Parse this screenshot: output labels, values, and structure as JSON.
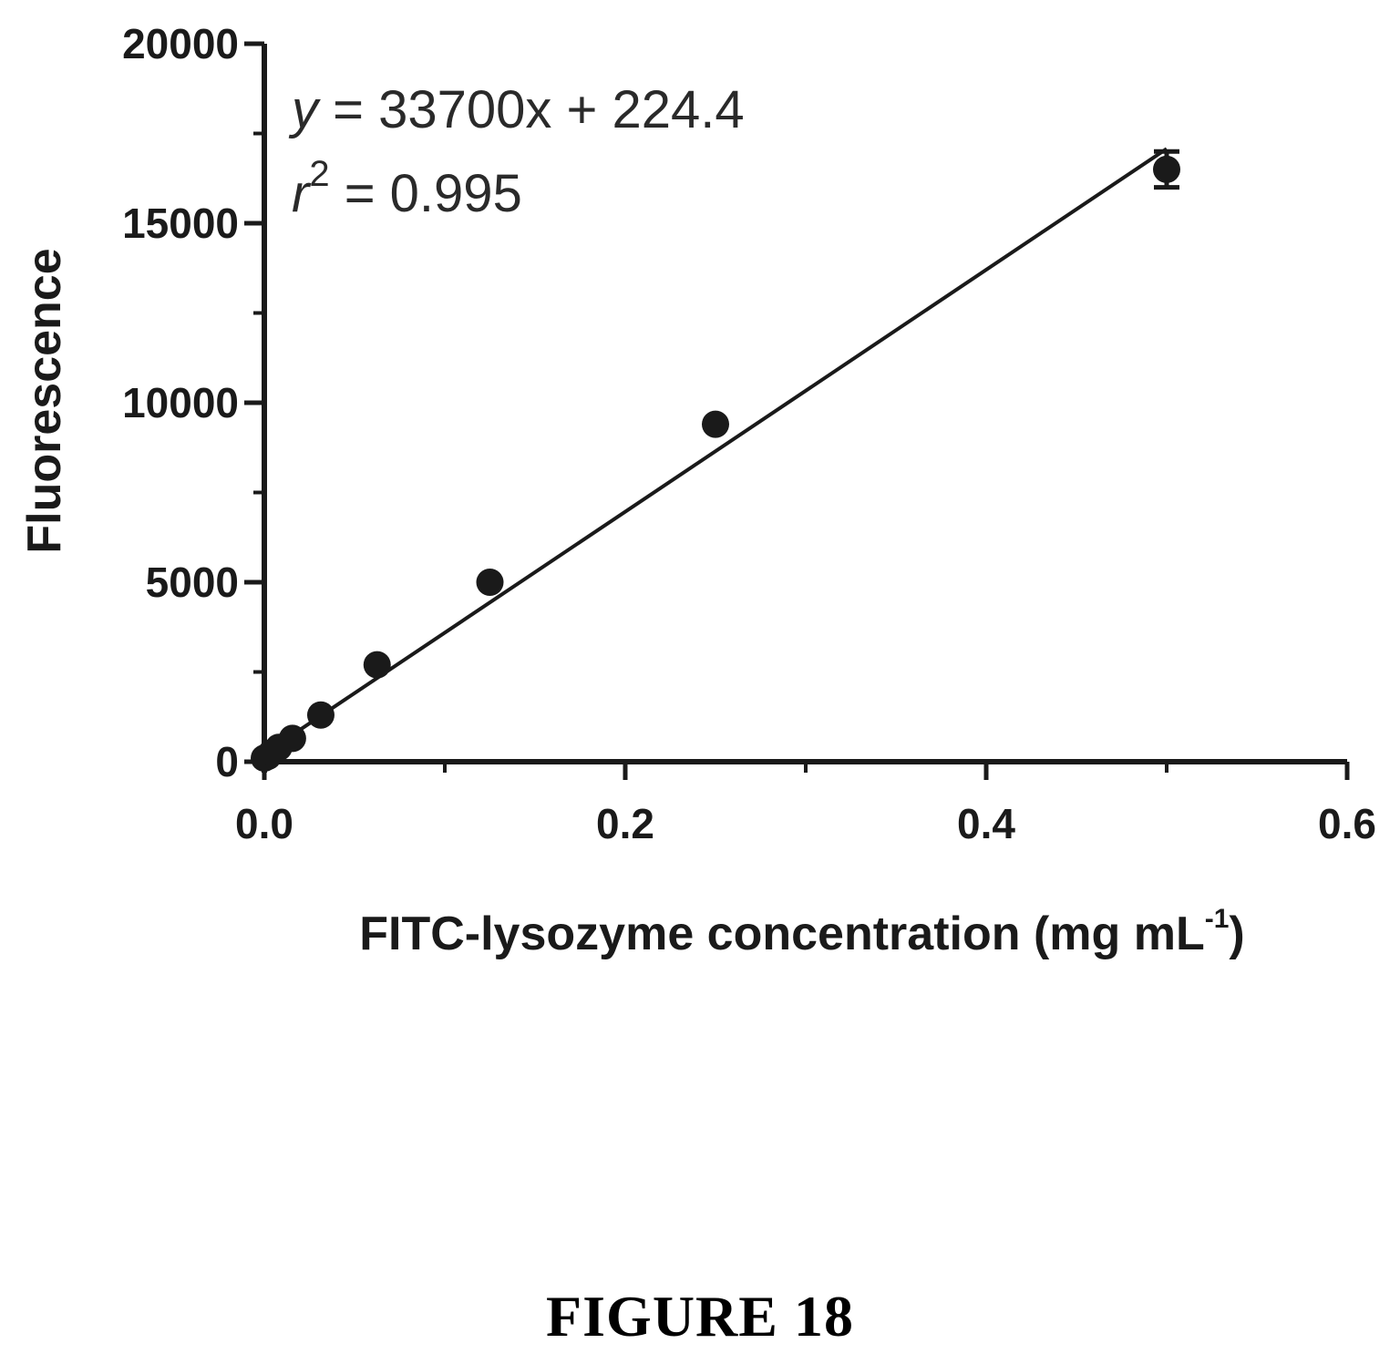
{
  "chart_data": {
    "type": "scatter",
    "title": "",
    "xlabel": "FITC-lysozyme concentration (mg mL",
    "xlabel_superscript": "-1",
    "xlabel_suffix": ")",
    "ylabel": "Fluorescence",
    "xlim": [
      0,
      0.6
    ],
    "ylim": [
      0,
      20000
    ],
    "x_ticks": [
      "0.0",
      "0.2",
      "0.4",
      "0.6"
    ],
    "y_ticks": [
      "0",
      "5000",
      "10000",
      "15000",
      "20000"
    ],
    "grid": false,
    "legend": "none",
    "series": [
      {
        "points": [
          {
            "x": 0.0,
            "y": 100
          },
          {
            "x": 0.002,
            "y": 150
          },
          {
            "x": 0.004,
            "y": 250
          },
          {
            "x": 0.008,
            "y": 400
          },
          {
            "x": 0.0156,
            "y": 650
          },
          {
            "x": 0.0313,
            "y": 1300
          },
          {
            "x": 0.0625,
            "y": 2700
          },
          {
            "x": 0.125,
            "y": 5000
          },
          {
            "x": 0.25,
            "y": 9400
          },
          {
            "x": 0.5,
            "y": 16500,
            "error": 500
          }
        ]
      }
    ],
    "fit": {
      "type": "linear",
      "slope": 33700,
      "intercept": 224.4,
      "x_range": [
        0,
        0.5
      ],
      "equation_line1": "y = 33700x  + 224.4",
      "equation_var": "y",
      "equation_rest": " = 33700x  + 224.4",
      "r2_label": "r",
      "r2_sup": "2",
      "r2_value": " = 0.995"
    }
  },
  "caption": "FIGURE 18",
  "colors": {
    "ink": "#1a1a1a",
    "background": "#ffffff"
  }
}
